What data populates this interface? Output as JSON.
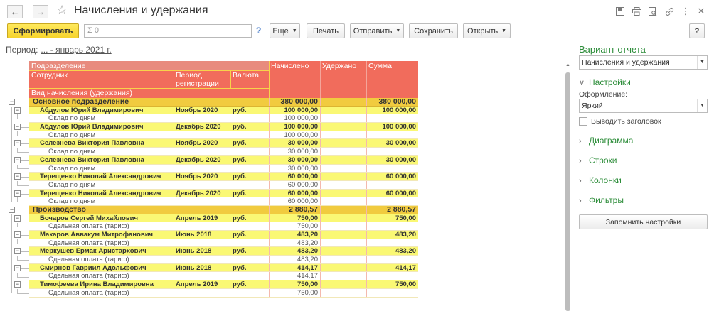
{
  "window": {
    "title": "Начисления и удержания"
  },
  "toolbar": {
    "generate_label": "Сформировать",
    "search_placeholder": "Σ 0",
    "help_label": "?",
    "more_label": "Еще",
    "print_label": "Печать",
    "send_label": "Отправить",
    "save_label": "Сохранить",
    "open_label": "Открыть",
    "help_button_label": "?"
  },
  "period": {
    "label": "Период:",
    "value": "... - январь 2021 г."
  },
  "report": {
    "headers": {
      "department": "Подразделение",
      "employee": "Сотрудник",
      "reg_period": "Период регистрации",
      "currency": "Валюта",
      "accrual_type": "Вид начисления (удержания)",
      "accrued": "Начислено",
      "withheld": "Удержано",
      "sum": "Сумма"
    },
    "rows": [
      {
        "kind": "group",
        "name": "Основное подразделение",
        "period": "",
        "cur": "",
        "accrued": "380 000,00",
        "withheld": "",
        "sum": "380 000,00"
      },
      {
        "kind": "emp",
        "name": "Абдулов Юрий Владимирович",
        "period": "Ноябрь 2020",
        "cur": "руб.",
        "accrued": "100 000,00",
        "withheld": "",
        "sum": "100 000,00"
      },
      {
        "kind": "detail",
        "name": "Оклад по дням",
        "period": "",
        "cur": "",
        "accrued": "100 000,00",
        "withheld": "",
        "sum": ""
      },
      {
        "kind": "emp",
        "name": "Абдулов Юрий Владимирович",
        "period": "Декабрь 2020",
        "cur": "руб.",
        "accrued": "100 000,00",
        "withheld": "",
        "sum": "100 000,00"
      },
      {
        "kind": "detail",
        "name": "Оклад по дням",
        "period": "",
        "cur": "",
        "accrued": "100 000,00",
        "withheld": "",
        "sum": ""
      },
      {
        "kind": "emp",
        "name": "Селезнева Виктория Павловна",
        "period": "Ноябрь 2020",
        "cur": "руб.",
        "accrued": "30 000,00",
        "withheld": "",
        "sum": "30 000,00"
      },
      {
        "kind": "detail",
        "name": "Оклад по дням",
        "period": "",
        "cur": "",
        "accrued": "30 000,00",
        "withheld": "",
        "sum": ""
      },
      {
        "kind": "emp",
        "name": "Селезнева Виктория Павловна",
        "period": "Декабрь 2020",
        "cur": "руб.",
        "accrued": "30 000,00",
        "withheld": "",
        "sum": "30 000,00"
      },
      {
        "kind": "detail",
        "name": "Оклад по дням",
        "period": "",
        "cur": "",
        "accrued": "30 000,00",
        "withheld": "",
        "sum": ""
      },
      {
        "kind": "emp",
        "name": "Терещенко Николай Александрович",
        "period": "Ноябрь 2020",
        "cur": "руб.",
        "accrued": "60 000,00",
        "withheld": "",
        "sum": "60 000,00"
      },
      {
        "kind": "detail",
        "name": "Оклад по дням",
        "period": "",
        "cur": "",
        "accrued": "60 000,00",
        "withheld": "",
        "sum": ""
      },
      {
        "kind": "emp",
        "name": "Терещенко Николай Александрович",
        "period": "Декабрь 2020",
        "cur": "руб.",
        "accrued": "60 000,00",
        "withheld": "",
        "sum": "60 000,00"
      },
      {
        "kind": "detail",
        "name": "Оклад по дням",
        "period": "",
        "cur": "",
        "accrued": "60 000,00",
        "withheld": "",
        "sum": ""
      },
      {
        "kind": "group",
        "name": "Производство",
        "period": "",
        "cur": "",
        "accrued": "2 880,57",
        "withheld": "",
        "sum": "2 880,57"
      },
      {
        "kind": "emp",
        "name": "Бочаров Сергей Михайлович",
        "period": "Апрель 2019",
        "cur": "руб.",
        "accrued": "750,00",
        "withheld": "",
        "sum": "750,00"
      },
      {
        "kind": "detail",
        "name": "Сдельная оплата (тариф)",
        "period": "",
        "cur": "",
        "accrued": "750,00",
        "withheld": "",
        "sum": ""
      },
      {
        "kind": "emp",
        "name": "Макаров Аввакум Митрофанович",
        "period": "Июнь 2018",
        "cur": "руб.",
        "accrued": "483,20",
        "withheld": "",
        "sum": "483,20"
      },
      {
        "kind": "detail",
        "name": "Сдельная оплата (тариф)",
        "period": "",
        "cur": "",
        "accrued": "483,20",
        "withheld": "",
        "sum": ""
      },
      {
        "kind": "emp",
        "name": "Меркушев Ермак Аристархович",
        "period": "Июнь 2018",
        "cur": "руб.",
        "accrued": "483,20",
        "withheld": "",
        "sum": "483,20"
      },
      {
        "kind": "detail",
        "name": "Сдельная оплата (тариф)",
        "period": "",
        "cur": "",
        "accrued": "483,20",
        "withheld": "",
        "sum": ""
      },
      {
        "kind": "emp",
        "name": "Смирнов Гавриил Адольфович",
        "period": "Июнь 2018",
        "cur": "руб.",
        "accrued": "414,17",
        "withheld": "",
        "sum": "414,17"
      },
      {
        "kind": "detail",
        "name": "Сдельная оплата (тариф)",
        "period": "",
        "cur": "",
        "accrued": "414,17",
        "withheld": "",
        "sum": ""
      },
      {
        "kind": "emp",
        "name": "Тимофеева Ирина Владимировна",
        "period": "Апрель 2019",
        "cur": "руб.",
        "accrued": "750,00",
        "withheld": "",
        "sum": "750,00"
      },
      {
        "kind": "detail",
        "name": "Сдельная оплата (тариф)",
        "period": "",
        "cur": "",
        "accrued": "750,00",
        "withheld": "",
        "sum": ""
      }
    ]
  },
  "settings_panel": {
    "variant_title": "Вариант отчета",
    "variant_value": "Начисления и удержания",
    "settings_label": "Настройки",
    "design_label": "Оформление:",
    "design_value": "Яркий",
    "show_header_label": "Выводить заголовок",
    "show_header_checked": false,
    "sections": [
      "Диаграмма",
      "Строки",
      "Колонки",
      "Фильтры"
    ],
    "remember_label": "Запомнить настройки"
  },
  "colors": {
    "header": "#f16c5c",
    "group_row": "#f1cb3f",
    "employee_row": "#faf874",
    "accent_green": "#2d8d3a",
    "primary_button": "#f6d32c"
  }
}
